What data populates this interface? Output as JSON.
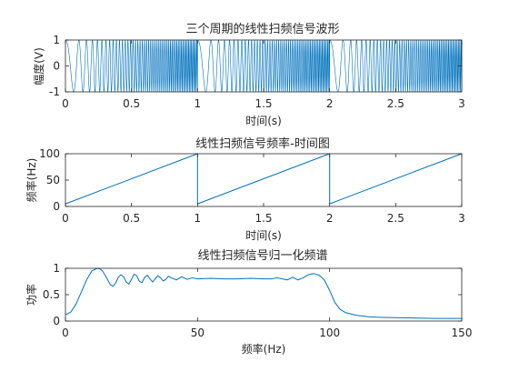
{
  "colors": {
    "series": "#0072BD",
    "axis": "#262626",
    "background": "#ffffff"
  },
  "chart_data": [
    {
      "type": "line",
      "title": "三个周期的线性扫频信号波形",
      "xlabel": "时间(s)",
      "ylabel": "幅度(V)",
      "xlim": [
        0,
        3
      ],
      "ylim": [
        -1,
        1
      ],
      "xticks": [
        0,
        0.5,
        1,
        1.5,
        2,
        2.5,
        3
      ],
      "xtick_labels": [
        "0",
        "0.5",
        "1",
        "1.5",
        "2",
        "2.5",
        "3"
      ],
      "yticks": [
        -1,
        0,
        1
      ],
      "ytick_labels": [
        "-1",
        "0",
        "1"
      ],
      "grid": false,
      "series": [
        {
          "kind": "linear-chirp",
          "amplitude": 1,
          "f_start_hz": 5,
          "f_end_hz": 100,
          "period_s": 1,
          "periods": 3
        }
      ]
    },
    {
      "type": "line",
      "title": "线性扫频信号频率-时间图",
      "xlabel": "时间(s)",
      "ylabel": "频率(Hz)",
      "xlim": [
        0,
        3
      ],
      "ylim": [
        0,
        100
      ],
      "xticks": [
        0,
        0.5,
        1,
        1.5,
        2,
        2.5,
        3
      ],
      "xtick_labels": [
        "0",
        "0.5",
        "1",
        "1.5",
        "2",
        "2.5",
        "3"
      ],
      "yticks": [
        0,
        50,
        100
      ],
      "ytick_labels": [
        "0",
        "50",
        "100"
      ],
      "grid": false,
      "series": [
        {
          "x": [
            0,
            1,
            1,
            2,
            2,
            3
          ],
          "y": [
            5,
            100,
            5,
            100,
            5,
            100
          ]
        }
      ]
    },
    {
      "type": "line",
      "title": "线性扫频信号归一化频谱",
      "xlabel": "频率(Hz)",
      "ylabel": "功率",
      "xlim": [
        0,
        150
      ],
      "ylim": [
        0,
        1
      ],
      "xticks": [
        0,
        50,
        100,
        150
      ],
      "xtick_labels": [
        "0",
        "50",
        "100",
        "150"
      ],
      "yticks": [
        0,
        0.5,
        1
      ],
      "ytick_labels": [
        "0",
        "0.5",
        "1"
      ],
      "grid": false,
      "series": [
        {
          "x": [
            0,
            2,
            4,
            6,
            8,
            10,
            12,
            13,
            14,
            15,
            16,
            17,
            18,
            19,
            20,
            21,
            22,
            23,
            24,
            25,
            26,
            27,
            28,
            29,
            30,
            31,
            32,
            33,
            34,
            35,
            36,
            37,
            38,
            39,
            40,
            42,
            44,
            46,
            48,
            50,
            55,
            60,
            65,
            70,
            75,
            78,
            80,
            82,
            84,
            86,
            88,
            90,
            92,
            94,
            96,
            98,
            100,
            102,
            104,
            106,
            110,
            115,
            120,
            130,
            140,
            150
          ],
          "y": [
            0.12,
            0.17,
            0.32,
            0.55,
            0.78,
            0.95,
            1.0,
            0.99,
            0.95,
            0.87,
            0.78,
            0.69,
            0.66,
            0.72,
            0.83,
            0.88,
            0.84,
            0.74,
            0.7,
            0.79,
            0.89,
            0.86,
            0.75,
            0.73,
            0.83,
            0.87,
            0.8,
            0.74,
            0.8,
            0.86,
            0.82,
            0.76,
            0.79,
            0.85,
            0.82,
            0.78,
            0.84,
            0.79,
            0.82,
            0.8,
            0.81,
            0.8,
            0.8,
            0.81,
            0.8,
            0.8,
            0.82,
            0.8,
            0.78,
            0.83,
            0.78,
            0.82,
            0.88,
            0.9,
            0.87,
            0.78,
            0.58,
            0.35,
            0.22,
            0.16,
            0.11,
            0.08,
            0.07,
            0.06,
            0.05,
            0.05
          ]
        }
      ]
    }
  ]
}
